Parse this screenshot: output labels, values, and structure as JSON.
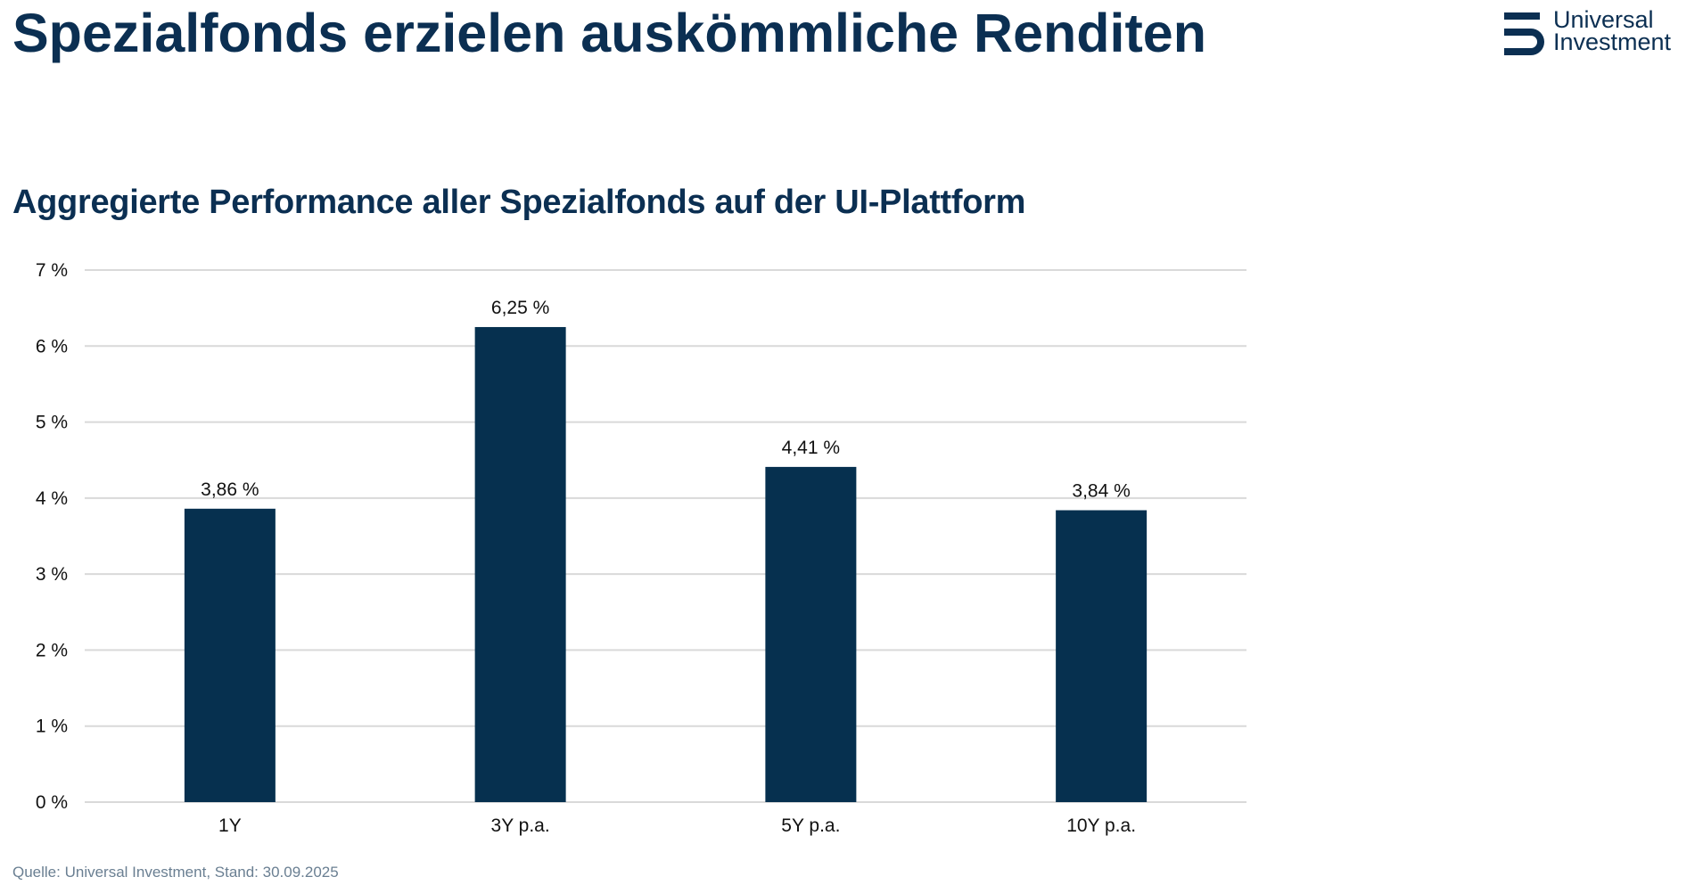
{
  "header": {
    "title": "Spezialfonds erzielen auskömmliche Renditen",
    "logo": {
      "icon": "universal-investment-logo-mark",
      "line1": "Universal",
      "line2": "Investment"
    }
  },
  "colors": {
    "brand": "#0b2f52",
    "bar": "#06304f",
    "grid": "#d9d9d9",
    "source_text": "#6a7f92"
  },
  "chart_data": {
    "type": "bar",
    "title": "Aggregierte Performance aller Spezialfonds auf der UI-Plattform",
    "xlabel": "",
    "ylabel": "",
    "categories": [
      "1Y",
      "3Y p.a.",
      "5Y p.a.",
      "10Y p.a."
    ],
    "values": [
      3.86,
      6.25,
      4.41,
      3.84
    ],
    "value_labels": [
      "3,86 %",
      "6,25 %",
      "4,41 %",
      "3,84 %"
    ],
    "ylim": [
      0,
      7
    ],
    "yticks": [
      0,
      1,
      2,
      3,
      4,
      5,
      6,
      7
    ],
    "ytick_labels": [
      "0 %",
      "1 %",
      "2 %",
      "3 %",
      "4 %",
      "5 %",
      "6 %",
      "7 %"
    ],
    "grid": true,
    "legend": "none"
  },
  "footer": {
    "source": "Quelle: Universal Investment, Stand: 30.09.2025"
  }
}
